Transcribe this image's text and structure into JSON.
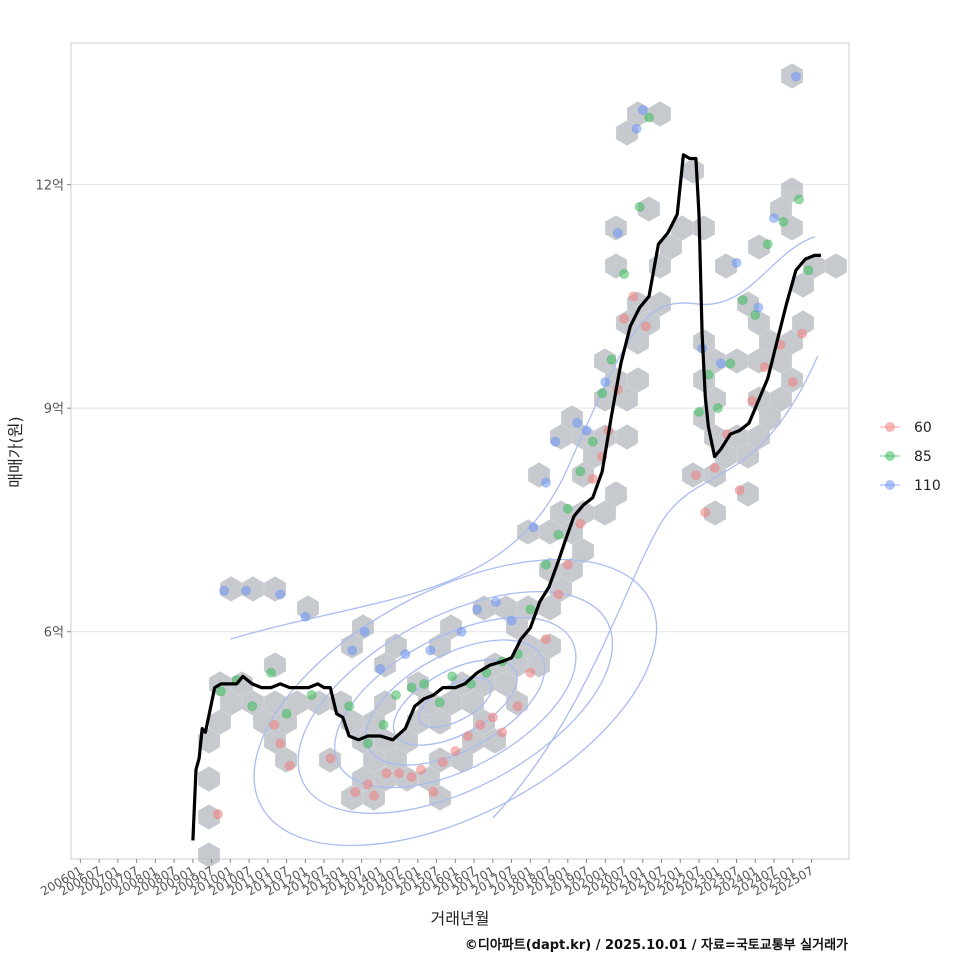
{
  "chart_data": {
    "type": "scatter",
    "xlabel": "거래년월",
    "ylabel": "매매가(원)",
    "caption": "©디아파트(dapt.kr) / 2025.10.01 / 자료=국토교통부 실거래가",
    "x_ticks": [
      "200601",
      "200607",
      "200701",
      "200707",
      "200801",
      "200807",
      "200901",
      "200907",
      "201001",
      "201007",
      "201101",
      "201107",
      "201201",
      "201207",
      "201301",
      "201307",
      "201401",
      "201407",
      "201501",
      "201507",
      "201601",
      "201607",
      "201701",
      "201707",
      "201801",
      "201807",
      "201901",
      "201907",
      "202001",
      "202007",
      "202101",
      "202107",
      "202201",
      "202207",
      "202301",
      "202307",
      "202401",
      "202407",
      "202501",
      "202507"
    ],
    "y_ticks": [
      {
        "value": 6,
        "label": "6억"
      },
      {
        "value": 9,
        "label": "9억"
      },
      {
        "value": 12,
        "label": "12억"
      }
    ],
    "xlim": [
      "2005-10",
      "2026-07"
    ],
    "ylim": [
      2.95,
      13.9
    ],
    "grid": "horizontal",
    "legend_position": "right",
    "colors": {
      "60": "#f08080",
      "85": "#3cbb5c",
      "110": "#6e96f5",
      "trend": "#000000",
      "hex": "#bcc0c5",
      "contour": "#aabcf0"
    },
    "series": [
      {
        "name": "60",
        "points": [
          [
            "2009-09",
            3.55
          ],
          [
            "2011-03",
            4.75
          ],
          [
            "2011-05",
            4.5
          ],
          [
            "2011-08",
            4.2
          ],
          [
            "2012-09",
            4.3
          ],
          [
            "2013-05",
            3.85
          ],
          [
            "2013-09",
            3.95
          ],
          [
            "2013-11",
            3.8
          ],
          [
            "2014-03",
            4.1
          ],
          [
            "2014-07",
            4.1
          ],
          [
            "2014-11",
            4.05
          ],
          [
            "2015-02",
            4.15
          ],
          [
            "2015-06",
            3.85
          ],
          [
            "2015-09",
            4.25
          ],
          [
            "2016-01",
            4.4
          ],
          [
            "2016-05",
            4.6
          ],
          [
            "2016-09",
            4.75
          ],
          [
            "2017-01",
            4.85
          ],
          [
            "2017-04",
            4.65
          ],
          [
            "2017-09",
            5.0
          ],
          [
            "2018-01",
            5.45
          ],
          [
            "2018-06",
            5.9
          ],
          [
            "2018-10",
            6.5
          ],
          [
            "2019-01",
            6.9
          ],
          [
            "2019-05",
            7.45
          ],
          [
            "2019-09",
            8.05
          ],
          [
            "2019-12",
            8.35
          ],
          [
            "2020-02",
            8.7
          ],
          [
            "2020-05",
            9.25
          ],
          [
            "2020-07",
            10.2
          ],
          [
            "2020-10",
            10.5
          ],
          [
            "2021-02",
            10.1
          ],
          [
            "2022-06",
            8.1
          ],
          [
            "2022-09",
            7.6
          ],
          [
            "2022-12",
            8.2
          ],
          [
            "2023-04",
            8.65
          ],
          [
            "2023-08",
            7.9
          ],
          [
            "2023-12",
            9.1
          ],
          [
            "2024-04",
            9.55
          ],
          [
            "2024-09",
            9.85
          ],
          [
            "2025-01",
            9.35
          ],
          [
            "2025-04",
            10.0
          ]
        ]
      },
      {
        "name": "85",
        "points": [
          [
            "2009-10",
            5.2
          ],
          [
            "2010-03",
            5.35
          ],
          [
            "2010-08",
            5.0
          ],
          [
            "2011-02",
            5.45
          ],
          [
            "2011-07",
            4.9
          ],
          [
            "2012-03",
            5.15
          ],
          [
            "2013-03",
            5.0
          ],
          [
            "2013-09",
            4.5
          ],
          [
            "2014-02",
            4.75
          ],
          [
            "2014-06",
            5.15
          ],
          [
            "2014-11",
            5.25
          ],
          [
            "2015-03",
            5.3
          ],
          [
            "2015-08",
            5.05
          ],
          [
            "2015-12",
            5.4
          ],
          [
            "2016-06",
            5.3
          ],
          [
            "2016-11",
            5.45
          ],
          [
            "2017-04",
            5.6
          ],
          [
            "2017-09",
            5.7
          ],
          [
            "2018-01",
            6.3
          ],
          [
            "2018-06",
            6.9
          ],
          [
            "2018-10",
            7.3
          ],
          [
            "2019-01",
            7.65
          ],
          [
            "2019-05",
            8.15
          ],
          [
            "2019-09",
            8.55
          ],
          [
            "2019-12",
            9.2
          ],
          [
            "2020-03",
            9.65
          ],
          [
            "2020-07",
            10.8
          ],
          [
            "2020-12",
            11.7
          ],
          [
            "2021-03",
            12.9
          ],
          [
            "2022-07",
            8.95
          ],
          [
            "2022-10",
            9.45
          ],
          [
            "2023-01",
            9.0
          ],
          [
            "2023-05",
            9.6
          ],
          [
            "2023-09",
            10.45
          ],
          [
            "2024-01",
            10.25
          ],
          [
            "2024-05",
            11.2
          ],
          [
            "2024-10",
            11.5
          ],
          [
            "2025-03",
            11.8
          ],
          [
            "2025-06",
            10.85
          ]
        ]
      },
      {
        "name": "110",
        "points": [
          [
            "2009-11",
            6.55
          ],
          [
            "2010-06",
            6.55
          ],
          [
            "2011-05",
            6.5
          ],
          [
            "2012-01",
            6.2
          ],
          [
            "2013-04",
            5.75
          ],
          [
            "2013-08",
            6.0
          ],
          [
            "2014-01",
            5.5
          ],
          [
            "2014-09",
            5.7
          ],
          [
            "2015-05",
            5.75
          ],
          [
            "2016-03",
            6.0
          ],
          [
            "2016-08",
            6.3
          ],
          [
            "2017-02",
            6.4
          ],
          [
            "2017-07",
            6.15
          ],
          [
            "2018-02",
            7.4
          ],
          [
            "2018-06",
            8.0
          ],
          [
            "2018-09",
            8.55
          ],
          [
            "2019-04",
            8.8
          ],
          [
            "2019-07",
            8.7
          ],
          [
            "2020-01",
            9.35
          ],
          [
            "2020-05",
            11.35
          ],
          [
            "2020-11",
            12.75
          ],
          [
            "2021-01",
            13.0
          ],
          [
            "2022-08",
            9.8
          ],
          [
            "2023-02",
            9.6
          ],
          [
            "2023-07",
            10.95
          ],
          [
            "2024-02",
            10.35
          ],
          [
            "2024-07",
            11.55
          ],
          [
            "2025-02",
            13.45
          ]
        ]
      }
    ],
    "trend": [
      [
        "2009-01",
        3.2
      ],
      [
        "2009-02",
        4.15
      ],
      [
        "2009-03",
        4.3
      ],
      [
        "2009-04",
        4.7
      ],
      [
        "2009-05",
        4.65
      ],
      [
        "2009-06",
        4.85
      ],
      [
        "2009-08",
        5.25
      ],
      [
        "2009-10",
        5.3
      ],
      [
        "2010-01",
        5.3
      ],
      [
        "2010-03",
        5.3
      ],
      [
        "2010-05",
        5.4
      ],
      [
        "2010-08",
        5.3
      ],
      [
        "2010-11",
        5.25
      ],
      [
        "2011-02",
        5.25
      ],
      [
        "2011-05",
        5.3
      ],
      [
        "2011-08",
        5.25
      ],
      [
        "2011-11",
        5.25
      ],
      [
        "2012-02",
        5.25
      ],
      [
        "2012-05",
        5.3
      ],
      [
        "2012-07",
        5.25
      ],
      [
        "2012-09",
        5.25
      ],
      [
        "2012-11",
        4.9
      ],
      [
        "2013-01",
        4.85
      ],
      [
        "2013-03",
        4.6
      ],
      [
        "2013-06",
        4.55
      ],
      [
        "2013-09",
        4.6
      ],
      [
        "2014-01",
        4.6
      ],
      [
        "2014-05",
        4.55
      ],
      [
        "2014-09",
        4.7
      ],
      [
        "2014-12",
        5.0
      ],
      [
        "2015-03",
        5.1
      ],
      [
        "2015-06",
        5.15
      ],
      [
        "2015-09",
        5.25
      ],
      [
        "2016-01",
        5.25
      ],
      [
        "2016-04",
        5.3
      ],
      [
        "2016-08",
        5.45
      ],
      [
        "2016-12",
        5.55
      ],
      [
        "2017-04",
        5.6
      ],
      [
        "2017-07",
        5.65
      ],
      [
        "2017-10",
        5.9
      ],
      [
        "2018-01",
        6.05
      ],
      [
        "2018-04",
        6.4
      ],
      [
        "2018-07",
        6.6
      ],
      [
        "2018-10",
        6.95
      ],
      [
        "2018-12",
        7.2
      ],
      [
        "2019-03",
        7.55
      ],
      [
        "2019-06",
        7.7
      ],
      [
        "2019-09",
        7.8
      ],
      [
        "2019-12",
        8.15
      ],
      [
        "2020-03",
        8.9
      ],
      [
        "2020-06",
        9.6
      ],
      [
        "2020-09",
        10.1
      ],
      [
        "2020-12",
        10.35
      ],
      [
        "2021-03",
        10.5
      ],
      [
        "2021-06",
        11.2
      ],
      [
        "2021-09",
        11.35
      ],
      [
        "2021-12",
        11.6
      ],
      [
        "2022-02",
        12.4
      ],
      [
        "2022-04",
        12.35
      ],
      [
        "2022-06",
        12.35
      ],
      [
        "2022-07",
        11.6
      ],
      [
        "2022-08",
        10.0
      ],
      [
        "2022-09",
        9.15
      ],
      [
        "2022-10",
        8.75
      ],
      [
        "2022-12",
        8.35
      ],
      [
        "2023-02",
        8.45
      ],
      [
        "2023-05",
        8.65
      ],
      [
        "2023-08",
        8.7
      ],
      [
        "2023-11",
        8.8
      ],
      [
        "2024-02",
        9.1
      ],
      [
        "2024-05",
        9.4
      ],
      [
        "2024-08",
        9.9
      ],
      [
        "2024-11",
        10.4
      ],
      [
        "2025-02",
        10.85
      ],
      [
        "2025-05",
        11.0
      ],
      [
        "2025-08",
        11.05
      ],
      [
        "2025-10",
        11.05
      ]
    ]
  }
}
